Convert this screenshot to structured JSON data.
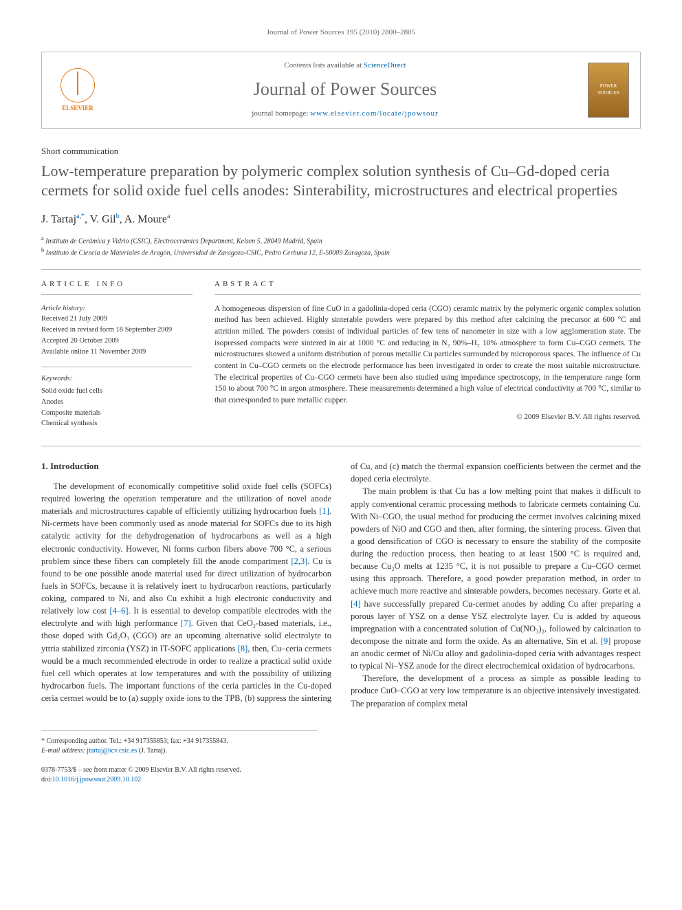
{
  "running_header": "Journal of Power Sources 195 (2010) 2800–2805",
  "masthead": {
    "contents_prefix": "Contents lists available at ",
    "contents_link": "ScienceDirect",
    "journal_name": "Journal of Power Sources",
    "homepage_prefix": "journal homepage: ",
    "homepage_link": "www.elsevier.com/locate/jpowsour",
    "publisher_logo_text": "ELSEVIER",
    "cover_text": "POWER SOURCES"
  },
  "article": {
    "type": "Short communication",
    "title": "Low-temperature preparation by polymeric complex solution synthesis of Cu–Gd-doped ceria cermets for solid oxide fuel cells anodes: Sinterability, microstructures and electrical properties",
    "authors_html": "J. Tartaj<sup>a,*</sup>, V. Gil<sup>b</sup>, A. Moure<sup>a</sup>",
    "affiliations": {
      "a": "Instituto de Cerámica y Vidrio (CSIC), Electroceramics Department, Kelsen 5, 28049 Madrid, Spain",
      "b": "Instituto de Ciencia de Materiales de Aragón, Universidad de Zaragoza-CSIC, Pedro Cerbuna 12, E-50009 Zaragoza, Spain"
    }
  },
  "info": {
    "heading": "ARTICLE INFO",
    "history_label": "Article history:",
    "history": {
      "received": "Received 21 July 2009",
      "revised": "Received in revised form 18 September 2009",
      "accepted": "Accepted 20 October 2009",
      "online": "Available online 11 November 2009"
    },
    "keywords_label": "Keywords:",
    "keywords": [
      "Solid oxide fuel cells",
      "Anodes",
      "Composite materials",
      "Chemical synthesis"
    ]
  },
  "abstract": {
    "heading": "ABSTRACT",
    "text": "A homogeneous dispersion of fine CuO in a gadolinia-doped ceria (CGO) ceramic matrix by the polymeric organic complex solution method has been achieved. Highly sinterable powders were prepared by this method after calcining the precursor at 600 °C and attrition milled. The powders consist of individual particles of few tens of nanometer in size with a low agglomeration state. The isopressed compacts were sintered in air at 1000 °C and reducing in N₂ 90%–H₂ 10% atmosphere to form Cu–CGO cermets. The microstructures showed a uniform distribution of porous metallic Cu particles surrounded by microporous spaces. The influence of Cu content in Cu–CGO cermets on the electrode performance has been investigated in order to create the most suitable microstructure. The electrical properties of Cu–CGO cermets have been also studied using impedance spectroscopy, in the temperature range form 150 to about 700 °C in argon atmosphere. These measurements determined a high value of electrical conductivity at 700 °C, similar to that corresponded to pure metallic cupper.",
    "copyright": "© 2009 Elsevier B.V. All rights reserved."
  },
  "section1": {
    "heading": "1. Introduction",
    "p1a": "The development of economically competitive solid oxide fuel cells (SOFCs) required lowering the operation temperature and the utilization of novel anode materials and microstructures capable of efficiently utilizing hydrocarbon fuels ",
    "r1": "[1]",
    "p1b": ". Ni-cermets have been commonly used as anode material for SOFCs due to its high catalytic activity for the dehydrogenation of hydrocarbons as well as a high electronic conductivity. However, Ni forms carbon fibers above 700 °C, a serious problem since these fibers can completely fill the anode compartment ",
    "r2": "[2,3]",
    "p1c": ". Cu is found to be one possible anode material used for direct utilization of hydrocarbon fuels in SOFCs, because it is relatively inert to hydrocarbon reactions, particularly coking, compared to Ni, and also Cu exhibit a high electronic conductivity and relatively low cost ",
    "r3": "[4–6]",
    "p1d": ". It is essential to develop compatible electrodes with the electrolyte and with high performance ",
    "r4": "[7]",
    "p1e": ". Given that CeO₂-based materials, i.e., those doped with Gd₂O₃ (CGO) are an upcoming alternative solid electrolyte to yttria stabilized zirconia (YSZ) in IT-SOFC applications ",
    "r5": "[8]",
    "p1f": ", then, Cu–ceria cermets would be a much recommended electrode in order to realize a practical solid oxide fuel cell which operates at low temperatures and with the possibility of utilizing hydrocarbon fuels. ",
    "p1g": "The important functions of the ceria particles in the Cu-doped ceria cermet would be to (a) supply oxide ions to the TPB, (b) suppress the sintering of Cu, and (c) match the thermal expansion coefficients between the cermet and the doped ceria electrolyte.",
    "p2a": "The main problem is that Cu has a low melting point that makes it difficult to apply conventional ceramic processing methods to fabricate cermets containing Cu. With Ni–CGO, the usual method for producing the cermet involves calcining mixed powders of NiO and CGO and then, after forming, the sintering process. Given that a good densification of CGO is necessary to ensure the stability of the composite during the reduction process, then heating to at least 1500 °C is required and, because Cu₂O melts at 1235 °C, it is not possible to prepare a Cu–CGO cermet using this approach. Therefore, a good powder preparation method, in order to achieve much more reactive and sinterable powders, becomes necessary. Gorte et al. ",
    "r6": "[4]",
    "p2b": " have successfully prepared Cu-cermet anodes by adding Cu after preparing a porous layer of YSZ on a dense YSZ electrolyte layer. Cu is added by aqueous impregnation with a concentrated solution of Cu(NO₃)₂, followed by calcination to decompose the nitrate and form the oxide. As an alternative, Sin et al. ",
    "r7": "[9]",
    "p2c": " propose an anodic cermet of Ni/Cu alloy and gadolinia-doped ceria with advantages respect to typical Ni–YSZ anode for the direct electrochemical oxidation of hydrocarbons.",
    "p3": "Therefore, the development of a process as simple as possible leading to produce CuO–CGO at very low temperature is an objective intensively investigated. The preparation of complex metal"
  },
  "footer": {
    "corr_label": "* Corresponding author. Tel.: +34 917355853; fax: +34 917355843.",
    "email_label": "E-mail address: ",
    "email": "jtartaj@icv.csic.es",
    "email_suffix": " (J. Tartaj).",
    "issn": "0378-7753/$ – see front matter © 2009 Elsevier B.V. All rights reserved.",
    "doi_label": "doi:",
    "doi": "10.1016/j.jpowsour.2009.10.102"
  },
  "colors": {
    "link": "#0066b3",
    "text": "#333333",
    "rule": "#aaaaaa",
    "journal_gray": "#6a6a6a",
    "elsevier_orange": "#e67817"
  }
}
